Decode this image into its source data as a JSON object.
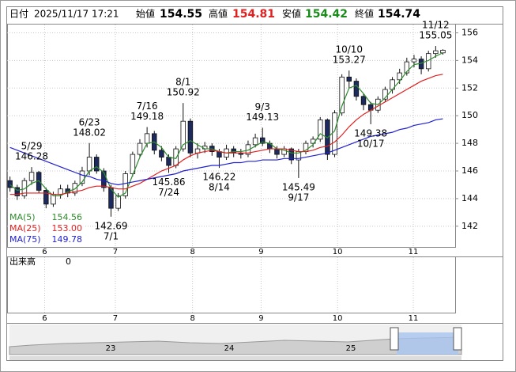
{
  "header": {
    "date_label": "日付",
    "datetime": "2025/11/17 17:21",
    "open_label": "始値",
    "open": "154.55",
    "high_label": "高値",
    "high": "154.81",
    "low_label": "安値",
    "low": "154.42",
    "close_label": "終値",
    "close": "154.74"
  },
  "chart_data": {
    "type": "candlestick",
    "xlim": [
      -0.4,
      61.7
    ],
    "xticks": [
      {
        "value": 4.8,
        "label": "6"
      },
      {
        "value": 14.6,
        "label": "7"
      },
      {
        "value": 25.3,
        "label": "8"
      },
      {
        "value": 34.8,
        "label": "9"
      },
      {
        "value": 45.4,
        "label": "10"
      },
      {
        "value": 55.9,
        "label": "11"
      }
    ],
    "ylim": [
      140.5,
      156.6
    ],
    "yticks": [
      142,
      144,
      146,
      148,
      150,
      152,
      154,
      156
    ],
    "grid": true,
    "up_color": "#ffffff",
    "down_color": "#1c2a5e",
    "open": [
      145.3,
      144.8,
      144.2,
      145.3,
      145.9,
      144.6,
      143.6,
      144.3,
      144.7,
      144.4,
      145.1,
      146.0,
      147.0,
      146.0,
      144.8,
      143.3,
      144.2,
      145.8,
      147.2,
      148.0,
      148.7,
      147.5,
      147.0,
      146.4,
      147.6,
      149.6,
      147.3,
      147.6,
      147.8,
      147.4,
      147.0,
      147.6,
      147.3,
      147.2,
      147.9,
      148.4,
      148.0,
      147.6,
      147.2,
      147.6,
      146.8,
      147.4,
      148.0,
      148.3,
      149.7,
      147.2,
      150.2,
      152.8,
      152.5,
      151.4,
      150.8,
      150.4,
      151.2,
      151.9,
      152.6,
      153.1,
      153.9,
      154.1,
      153.4,
      154.5,
      154.55
    ],
    "high": [
      145.6,
      145.0,
      145.5,
      146.28,
      146.0,
      144.8,
      144.5,
      145.0,
      145.0,
      145.3,
      146.3,
      148.02,
      147.2,
      146.2,
      145.0,
      144.4,
      146.0,
      147.4,
      148.3,
      149.18,
      148.9,
      147.8,
      147.2,
      147.8,
      150.92,
      149.8,
      148.0,
      148.1,
      148.0,
      147.6,
      147.9,
      147.8,
      147.6,
      148.2,
      148.7,
      149.13,
      148.2,
      147.8,
      147.8,
      147.7,
      147.6,
      148.2,
      148.5,
      149.9,
      149.8,
      150.4,
      153.0,
      153.27,
      152.7,
      151.6,
      151.0,
      151.4,
      152.1,
      152.8,
      153.4,
      154.2,
      154.4,
      154.3,
      154.7,
      155.05,
      154.81
    ],
    "low": [
      144.5,
      143.9,
      144.0,
      145.0,
      144.4,
      143.3,
      143.4,
      144.0,
      144.1,
      144.2,
      144.9,
      145.7,
      145.8,
      144.5,
      142.69,
      143.1,
      144.0,
      145.6,
      147.0,
      147.7,
      147.2,
      146.7,
      145.86,
      146.2,
      147.4,
      147.0,
      146.9,
      147.3,
      147.1,
      146.22,
      146.8,
      147.0,
      146.9,
      147.0,
      147.7,
      147.8,
      147.3,
      146.9,
      147.0,
      146.5,
      145.49,
      147.2,
      147.7,
      148.1,
      146.8,
      147.0,
      150.0,
      152.0,
      151.1,
      150.4,
      149.38,
      150.2,
      151.0,
      151.6,
      152.3,
      152.9,
      153.5,
      153.0,
      153.2,
      154.2,
      154.42
    ],
    "close": [
      144.8,
      144.2,
      145.3,
      145.9,
      144.6,
      143.6,
      144.3,
      144.7,
      144.4,
      145.1,
      146.0,
      147.0,
      146.0,
      144.8,
      143.3,
      144.2,
      145.8,
      147.2,
      148.0,
      148.7,
      147.5,
      147.0,
      146.4,
      147.6,
      149.6,
      147.3,
      147.6,
      147.8,
      147.4,
      147.0,
      147.6,
      147.3,
      147.2,
      147.9,
      148.4,
      148.0,
      147.6,
      147.2,
      147.6,
      146.8,
      147.4,
      148.0,
      148.3,
      149.7,
      147.2,
      150.2,
      152.8,
      152.5,
      151.4,
      150.8,
      150.4,
      151.2,
      151.9,
      152.6,
      153.1,
      153.9,
      154.1,
      153.4,
      154.5,
      154.7,
      154.74
    ],
    "series": [
      {
        "name": "MA(5)",
        "color": "#2e8b2e",
        "legend_value": "154.56",
        "values": [
          145.0,
          144.6,
          144.7,
          145.1,
          145.3,
          144.7,
          144.2,
          144.2,
          144.5,
          144.7,
          145.2,
          146.0,
          146.3,
          145.9,
          144.7,
          144.1,
          144.4,
          145.7,
          147.0,
          148.0,
          148.1,
          147.7,
          147.0,
          146.9,
          147.9,
          148.2,
          147.9,
          147.6,
          147.6,
          147.4,
          147.3,
          147.4,
          147.4,
          147.5,
          147.8,
          148.1,
          148.0,
          147.6,
          147.5,
          147.3,
          147.3,
          147.5,
          147.9,
          148.7,
          148.4,
          148.9,
          150.7,
          152.0,
          152.2,
          151.6,
          150.9,
          150.8,
          151.3,
          151.9,
          152.5,
          153.2,
          153.7,
          153.8,
          154.0,
          154.3,
          154.56
        ]
      },
      {
        "name": "MA(25)",
        "color": "#e02020",
        "legend_value": "153.00",
        "values": [
          144.3,
          144.3,
          144.4,
          144.4,
          144.4,
          144.4,
          144.3,
          144.3,
          144.4,
          144.5,
          144.6,
          144.8,
          144.9,
          144.9,
          144.8,
          144.7,
          144.7,
          144.9,
          145.1,
          145.4,
          145.7,
          146.0,
          146.2,
          146.4,
          146.8,
          147.1,
          147.3,
          147.4,
          147.5,
          147.4,
          147.3,
          147.3,
          147.3,
          147.3,
          147.4,
          147.5,
          147.6,
          147.6,
          147.6,
          147.5,
          147.4,
          147.4,
          147.5,
          147.7,
          147.8,
          148.1,
          148.6,
          149.2,
          149.7,
          150.1,
          150.4,
          150.7,
          151.0,
          151.3,
          151.6,
          151.9,
          152.2,
          152.5,
          152.7,
          152.9,
          153
        ]
      },
      {
        "name": "MA(75)",
        "color": "#2020d0",
        "legend_value": "149.78",
        "values": [
          147.7,
          147.5,
          147.3,
          147.1,
          146.9,
          146.7,
          146.5,
          146.3,
          146.1,
          145.9,
          145.7,
          145.6,
          145.4,
          145.3,
          145.1,
          145.0,
          145.1,
          145.2,
          145.3,
          145.4,
          145.5,
          145.6,
          145.7,
          145.8,
          146.0,
          146.1,
          146.2,
          146.3,
          146.4,
          146.4,
          146.5,
          146.6,
          146.6,
          146.7,
          146.7,
          146.8,
          146.8,
          146.8,
          146.9,
          146.9,
          146.9,
          147.0,
          147.1,
          147.2,
          147.3,
          147.5,
          147.7,
          147.9,
          148.1,
          148.3,
          148.5,
          148.6,
          148.7,
          148.8,
          149.0,
          149.1,
          149.3,
          149.4,
          149.5,
          149.7,
          149.78
        ]
      }
    ],
    "annotations": [
      {
        "date": "5/29",
        "value": 146.28
      },
      {
        "date": "6/23",
        "value": 148.02
      },
      {
        "date": "7/1",
        "value": 142.69
      },
      {
        "date": "7/16",
        "value": 149.18
      },
      {
        "date": "7/24",
        "value": 145.86
      },
      {
        "date": "8/1",
        "value": 150.92
      },
      {
        "date": "8/14",
        "value": 146.22
      },
      {
        "date": "9/3",
        "value": 149.13
      },
      {
        "date": "9/17",
        "value": 145.49
      },
      {
        "date": "10/10",
        "value": 153.27
      },
      {
        "date": "10/17",
        "value": 149.38
      },
      {
        "date": "11/12",
        "value": 155.05
      }
    ]
  },
  "volume": {
    "label": "出来高",
    "value": 0
  },
  "navigator": {
    "labels": [
      "23",
      "24",
      "25"
    ]
  }
}
